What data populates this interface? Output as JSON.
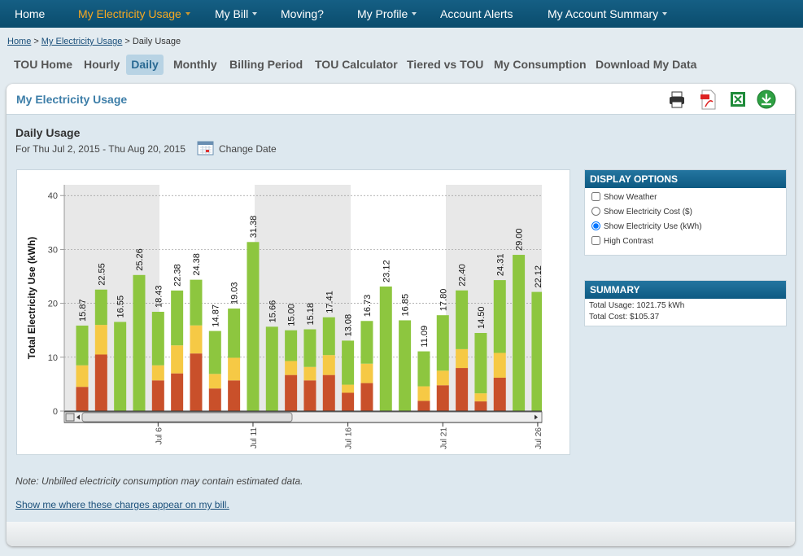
{
  "nav": [
    "Home",
    "My Electricity Usage",
    "My Bill",
    "Moving?",
    "My Profile",
    "Account Alerts",
    "My Account Summary"
  ],
  "breadcrumb": [
    "Home",
    "My Electricity Usage",
    "Daily Usage"
  ],
  "breadcrumb_separator": ">",
  "tabs": [
    "TOU Home",
    "Hourly",
    "Daily",
    "Monthly",
    "Billing Period",
    "TOU Calculator",
    "Tiered vs TOU",
    "My Consumption",
    "Download My Data"
  ],
  "panel_title": "My Electricity Usage",
  "section_title": "Daily Usage",
  "date_range": "For Thu Jul 2, 2015 - Thu Aug 20, 2015",
  "change_date": "Change Date",
  "chart_data": {
    "type": "bar",
    "stacked": true,
    "y_label": "Total Electricity Use (kWh)",
    "categories": [
      null,
      null,
      null,
      null,
      "Jul 6",
      null,
      null,
      null,
      null,
      "Jul 11",
      null,
      null,
      null,
      null,
      "Jul 16",
      null,
      null,
      null,
      null,
      "Jul 21",
      null,
      null,
      null,
      null,
      "Jul 26"
    ],
    "series": [
      {
        "color": "#c9502a",
        "values": [
          4.5,
          10.5,
          0,
          0,
          5.7,
          7,
          10.7,
          4.2,
          5.7,
          0,
          0,
          6.7,
          5.7,
          6.7,
          3.4,
          5.2,
          0,
          0,
          1.9,
          4.8,
          8,
          1.8,
          6.2,
          0,
          0
        ]
      },
      {
        "color": "#f6c945",
        "values": [
          4,
          5.5,
          0,
          0,
          2.8,
          5.2,
          5.2,
          2.7,
          4.2,
          0,
          0,
          2.6,
          2.5,
          3.7,
          1.5,
          3.6,
          0,
          0,
          2.7,
          2.7,
          3.5,
          1.5,
          4.6,
          0,
          0
        ]
      },
      {
        "color": "#8dc63f",
        "values": [
          7.37,
          6.55,
          16.55,
          25.26,
          9.93,
          10.18,
          8.48,
          7.97,
          9.13,
          31.38,
          15.66,
          5.7,
          6.98,
          7.01,
          8.18,
          7.93,
          23.12,
          16.85,
          6.49,
          10.3,
          10.9,
          11.2,
          13.51,
          29,
          22.12
        ]
      }
    ],
    "totals": [
      15.87,
      22.55,
      16.55,
      25.26,
      18.43,
      22.38,
      24.38,
      14.87,
      19.03,
      31.38,
      15.66,
      15,
      15.18,
      17.41,
      13.08,
      16.73,
      23.12,
      16.85,
      11.09,
      17.8,
      22.4,
      14.5,
      24.31,
      29,
      22.12
    ],
    "value_labels": [
      "15.87",
      "22.55",
      "16.55",
      "25.26",
      "18.43",
      "22.38",
      "24.38",
      "14.87",
      "19.03",
      "31.38",
      "15.66",
      "15.00",
      "15.18",
      "17.41",
      "13.08",
      "16.73",
      "23.12",
      "16.85",
      "11.09",
      "17.80",
      "22.40",
      "14.50",
      "24.31",
      "29.00",
      "22.12"
    ],
    "ylim": [
      0,
      42
    ],
    "yticks": [
      0,
      10,
      20,
      30,
      40
    ],
    "grid": true
  },
  "display_options": {
    "title": "DISPLAY OPTIONS",
    "items": [
      {
        "label": "Show Weather",
        "kind": "checkbox",
        "checked": false
      },
      {
        "label": "Show Electricity Cost ($)",
        "kind": "radio",
        "checked": false
      },
      {
        "label": "Show Electricity Use (kWh)",
        "kind": "radio",
        "checked": true
      },
      {
        "label": "High Contrast",
        "kind": "checkbox",
        "checked": false
      }
    ]
  },
  "summary": {
    "title": "SUMMARY",
    "lines": [
      "Total Usage: 1021.75 kWh",
      "Total Cost: $105.37"
    ]
  },
  "note": "Note: Unbilled electricity consumption may contain estimated data.",
  "link": "Show me where these charges appear on my bill."
}
